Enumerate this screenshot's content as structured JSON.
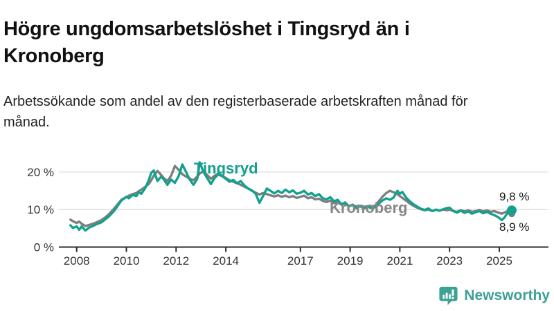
{
  "header": {
    "title": "Högre ungdomsarbetslöshet i Tingsryd än i Kronoberg",
    "subtitle": "Arbetssökande som andel av den registerbaserade arbetskraften månad för månad."
  },
  "footer": {
    "brand": "Newsworthy",
    "logo_icon": "bar-chart-speech-bubble-icon",
    "brand_color": "#3ea195"
  },
  "chart_data": {
    "type": "line",
    "title": "Högre ungdomsarbetslöshet i Tingsryd än i Kronoberg",
    "subtitle": "Arbetssökande som andel av den registerbaserade arbetskraften månad för månad.",
    "unit": "%",
    "xlim": [
      2007.6,
      2026.2
    ],
    "ylim": [
      0,
      25
    ],
    "grid": true,
    "grid_color": "#dedede",
    "axis_color": "#2b2b2b",
    "axis_text_color": "#333333",
    "x_ticks": [
      2008,
      2010,
      2012,
      2014,
      2017,
      2019,
      2021,
      2023,
      2025
    ],
    "y_ticks": [
      {
        "value": 0,
        "label": "0 %"
      },
      {
        "value": 10,
        "label": "10 %"
      },
      {
        "value": 20,
        "label": "20 %"
      }
    ],
    "series": [
      {
        "name": "Kronoberg",
        "color": "#7e7e7e",
        "end_dot_radius": 5,
        "label": {
          "text": "Kronoberg",
          "x": 476,
          "y": 103,
          "color": "#878787",
          "size": 22,
          "weight": 700
        },
        "end_label": {
          "text": "8,9 %",
          "x": 721,
          "y": 129,
          "color": "#1a1a1a",
          "size": 17
        },
        "last_value": 8.9,
        "points": [
          [
            2007.75,
            7.3
          ],
          [
            2007.85,
            6.9
          ],
          [
            2008.0,
            6.4
          ],
          [
            2008.1,
            6.8
          ],
          [
            2008.2,
            6.2
          ],
          [
            2008.35,
            5.6
          ],
          [
            2008.5,
            5.9
          ],
          [
            2008.65,
            6.2
          ],
          [
            2008.8,
            6.6
          ],
          [
            2009.0,
            7.2
          ],
          [
            2009.15,
            7.9
          ],
          [
            2009.3,
            8.8
          ],
          [
            2009.5,
            10.2
          ],
          [
            2009.65,
            11.4
          ],
          [
            2009.8,
            12.6
          ],
          [
            2010.0,
            13.3
          ],
          [
            2010.1,
            13.7
          ],
          [
            2010.25,
            14.1
          ],
          [
            2010.4,
            14.4
          ],
          [
            2010.5,
            14.9
          ],
          [
            2010.6,
            15.3
          ],
          [
            2010.75,
            16.0
          ],
          [
            2010.9,
            16.8
          ],
          [
            2011.0,
            17.8
          ],
          [
            2011.1,
            19.0
          ],
          [
            2011.25,
            20.3
          ],
          [
            2011.4,
            19.2
          ],
          [
            2011.5,
            18.4
          ],
          [
            2011.65,
            17.6
          ],
          [
            2011.8,
            19.0
          ],
          [
            2011.95,
            21.6
          ],
          [
            2012.1,
            20.6
          ],
          [
            2012.25,
            19.4
          ],
          [
            2012.4,
            18.8
          ],
          [
            2012.55,
            18.2
          ],
          [
            2012.7,
            17.8
          ],
          [
            2012.85,
            18.8
          ],
          [
            2012.95,
            19.6
          ],
          [
            2013.1,
            20.2
          ],
          [
            2013.25,
            19.2
          ],
          [
            2013.4,
            18.2
          ],
          [
            2013.55,
            19.0
          ],
          [
            2013.7,
            19.6
          ],
          [
            2013.85,
            19.0
          ],
          [
            2014.0,
            18.4
          ],
          [
            2014.15,
            17.8
          ],
          [
            2014.3,
            17.4
          ],
          [
            2014.45,
            17.0
          ],
          [
            2014.6,
            16.6
          ],
          [
            2014.75,
            16.1
          ],
          [
            2014.9,
            15.6
          ],
          [
            2015.05,
            15.0
          ],
          [
            2015.2,
            14.5
          ],
          [
            2015.35,
            14.0
          ],
          [
            2015.5,
            14.4
          ],
          [
            2015.65,
            14.1
          ],
          [
            2015.8,
            13.8
          ],
          [
            2015.95,
            13.5
          ],
          [
            2016.1,
            13.8
          ],
          [
            2016.25,
            13.4
          ],
          [
            2016.4,
            13.7
          ],
          [
            2016.55,
            13.3
          ],
          [
            2016.7,
            13.6
          ],
          [
            2016.85,
            13.1
          ],
          [
            2017.0,
            13.4
          ],
          [
            2017.15,
            13.7
          ],
          [
            2017.3,
            13.0
          ],
          [
            2017.45,
            13.3
          ],
          [
            2017.6,
            12.7
          ],
          [
            2017.75,
            12.9
          ],
          [
            2017.9,
            12.3
          ],
          [
            2018.05,
            12.0
          ],
          [
            2018.2,
            12.4
          ],
          [
            2018.35,
            11.7
          ],
          [
            2018.5,
            12.0
          ],
          [
            2018.65,
            11.3
          ],
          [
            2018.8,
            11.6
          ],
          [
            2018.95,
            11.0
          ],
          [
            2019.1,
            11.2
          ],
          [
            2019.25,
            10.8
          ],
          [
            2019.4,
            11.0
          ],
          [
            2019.55,
            10.7
          ],
          [
            2019.7,
            10.9
          ],
          [
            2019.85,
            10.7
          ],
          [
            2020.0,
            11.0
          ],
          [
            2020.15,
            12.2
          ],
          [
            2020.3,
            13.4
          ],
          [
            2020.45,
            14.4
          ],
          [
            2020.6,
            15.0
          ],
          [
            2020.75,
            14.6
          ],
          [
            2020.9,
            14.1
          ],
          [
            2021.0,
            13.6
          ],
          [
            2021.1,
            13.1
          ],
          [
            2021.25,
            12.4
          ],
          [
            2021.4,
            11.6
          ],
          [
            2021.55,
            11.0
          ],
          [
            2021.7,
            10.5
          ],
          [
            2021.85,
            10.1
          ],
          [
            2022.0,
            9.8
          ],
          [
            2022.15,
            10.0
          ],
          [
            2022.3,
            9.6
          ],
          [
            2022.45,
            9.9
          ],
          [
            2022.6,
            9.7
          ],
          [
            2022.75,
            10.0
          ],
          [
            2022.9,
            9.8
          ],
          [
            2023.0,
            10.0
          ],
          [
            2023.15,
            9.6
          ],
          [
            2023.3,
            9.4
          ],
          [
            2023.45,
            9.8
          ],
          [
            2023.6,
            9.5
          ],
          [
            2023.75,
            9.8
          ],
          [
            2023.9,
            9.4
          ],
          [
            2024.05,
            9.6
          ],
          [
            2024.2,
            9.9
          ],
          [
            2024.35,
            9.5
          ],
          [
            2024.5,
            9.8
          ],
          [
            2024.65,
            9.4
          ],
          [
            2024.8,
            9.6
          ],
          [
            2024.95,
            9.2
          ],
          [
            2025.1,
            8.9
          ],
          [
            2025.2,
            9.2
          ],
          [
            2025.3,
            9.5
          ],
          [
            2025.4,
            9.2
          ],
          [
            2025.5,
            8.9
          ]
        ]
      },
      {
        "name": "Tingsryd",
        "color": "#12a18e",
        "end_dot_radius": 7,
        "label": {
          "text": "Tingsryd",
          "x": 280,
          "y": 46,
          "color": "#12a18e",
          "size": 22,
          "weight": 700
        },
        "end_label": {
          "text": "9,8 %",
          "x": 721,
          "y": 85,
          "color": "#1a1a1a",
          "size": 17
        },
        "last_value": 9.8,
        "points": [
          [
            2007.75,
            5.8
          ],
          [
            2007.85,
            5.1
          ],
          [
            2008.0,
            5.5
          ],
          [
            2008.1,
            4.6
          ],
          [
            2008.2,
            5.5
          ],
          [
            2008.35,
            4.4
          ],
          [
            2008.5,
            5.2
          ],
          [
            2008.65,
            5.6
          ],
          [
            2008.8,
            6.1
          ],
          [
            2009.0,
            6.6
          ],
          [
            2009.15,
            7.4
          ],
          [
            2009.3,
            8.2
          ],
          [
            2009.5,
            9.6
          ],
          [
            2009.65,
            11.0
          ],
          [
            2009.8,
            12.4
          ],
          [
            2010.0,
            13.4
          ],
          [
            2010.1,
            13.0
          ],
          [
            2010.25,
            13.9
          ],
          [
            2010.4,
            13.6
          ],
          [
            2010.5,
            14.6
          ],
          [
            2010.6,
            14.2
          ],
          [
            2010.75,
            15.6
          ],
          [
            2010.9,
            17.8
          ],
          [
            2011.0,
            19.8
          ],
          [
            2011.1,
            20.4
          ],
          [
            2011.25,
            17.6
          ],
          [
            2011.4,
            18.8
          ],
          [
            2011.5,
            18.1
          ],
          [
            2011.65,
            16.6
          ],
          [
            2011.8,
            18.0
          ],
          [
            2011.95,
            17.1
          ],
          [
            2012.1,
            18.9
          ],
          [
            2012.25,
            22.0
          ],
          [
            2012.4,
            20.0
          ],
          [
            2012.55,
            18.0
          ],
          [
            2012.7,
            16.6
          ],
          [
            2012.85,
            18.2
          ],
          [
            2012.95,
            22.6
          ],
          [
            2013.1,
            20.0
          ],
          [
            2013.25,
            18.4
          ],
          [
            2013.4,
            16.8
          ],
          [
            2013.55,
            18.4
          ],
          [
            2013.7,
            19.4
          ],
          [
            2013.85,
            18.9
          ],
          [
            2014.0,
            18.2
          ],
          [
            2014.15,
            17.4
          ],
          [
            2014.3,
            17.9
          ],
          [
            2014.45,
            17.0
          ],
          [
            2014.6,
            17.6
          ],
          [
            2014.75,
            16.4
          ],
          [
            2014.9,
            15.6
          ],
          [
            2015.05,
            15.1
          ],
          [
            2015.2,
            14.2
          ],
          [
            2015.35,
            11.8
          ],
          [
            2015.5,
            13.6
          ],
          [
            2015.65,
            15.6
          ],
          [
            2015.8,
            15.0
          ],
          [
            2015.95,
            14.3
          ],
          [
            2016.1,
            15.0
          ],
          [
            2016.25,
            14.4
          ],
          [
            2016.4,
            15.3
          ],
          [
            2016.55,
            14.6
          ],
          [
            2016.7,
            15.1
          ],
          [
            2016.85,
            14.2
          ],
          [
            2017.0,
            14.5
          ],
          [
            2017.15,
            15.0
          ],
          [
            2017.3,
            14.0
          ],
          [
            2017.45,
            14.4
          ],
          [
            2017.6,
            13.6
          ],
          [
            2017.75,
            14.1
          ],
          [
            2017.9,
            13.0
          ],
          [
            2018.05,
            12.7
          ],
          [
            2018.2,
            13.3
          ],
          [
            2018.35,
            12.2
          ],
          [
            2018.5,
            12.6
          ],
          [
            2018.65,
            11.4
          ],
          [
            2018.8,
            11.9
          ],
          [
            2018.95,
            10.8
          ],
          [
            2019.1,
            11.3
          ],
          [
            2019.25,
            10.4
          ],
          [
            2019.4,
            10.9
          ],
          [
            2019.55,
            10.3
          ],
          [
            2019.7,
            10.8
          ],
          [
            2019.85,
            10.4
          ],
          [
            2020.0,
            10.6
          ],
          [
            2020.15,
            11.6
          ],
          [
            2020.3,
            12.4
          ],
          [
            2020.45,
            13.0
          ],
          [
            2020.6,
            12.6
          ],
          [
            2020.75,
            13.2
          ],
          [
            2020.9,
            15.0
          ],
          [
            2021.0,
            14.2
          ],
          [
            2021.1,
            14.7
          ],
          [
            2021.25,
            13.2
          ],
          [
            2021.4,
            12.2
          ],
          [
            2021.55,
            11.4
          ],
          [
            2021.7,
            10.8
          ],
          [
            2021.85,
            10.2
          ],
          [
            2022.0,
            9.9
          ],
          [
            2022.15,
            10.3
          ],
          [
            2022.3,
            9.6
          ],
          [
            2022.45,
            10.0
          ],
          [
            2022.6,
            9.7
          ],
          [
            2022.75,
            10.1
          ],
          [
            2022.9,
            10.4
          ],
          [
            2023.0,
            10.5
          ],
          [
            2023.15,
            9.6
          ],
          [
            2023.3,
            9.2
          ],
          [
            2023.45,
            9.7
          ],
          [
            2023.6,
            9.1
          ],
          [
            2023.75,
            9.5
          ],
          [
            2023.9,
            8.9
          ],
          [
            2024.05,
            9.3
          ],
          [
            2024.2,
            9.6
          ],
          [
            2024.35,
            9.0
          ],
          [
            2024.5,
            9.4
          ],
          [
            2024.65,
            8.9
          ],
          [
            2024.8,
            8.5
          ],
          [
            2024.95,
            8.0
          ],
          [
            2025.1,
            7.2
          ],
          [
            2025.2,
            7.8
          ],
          [
            2025.3,
            8.8
          ],
          [
            2025.4,
            9.4
          ],
          [
            2025.5,
            9.8
          ]
        ]
      }
    ]
  }
}
